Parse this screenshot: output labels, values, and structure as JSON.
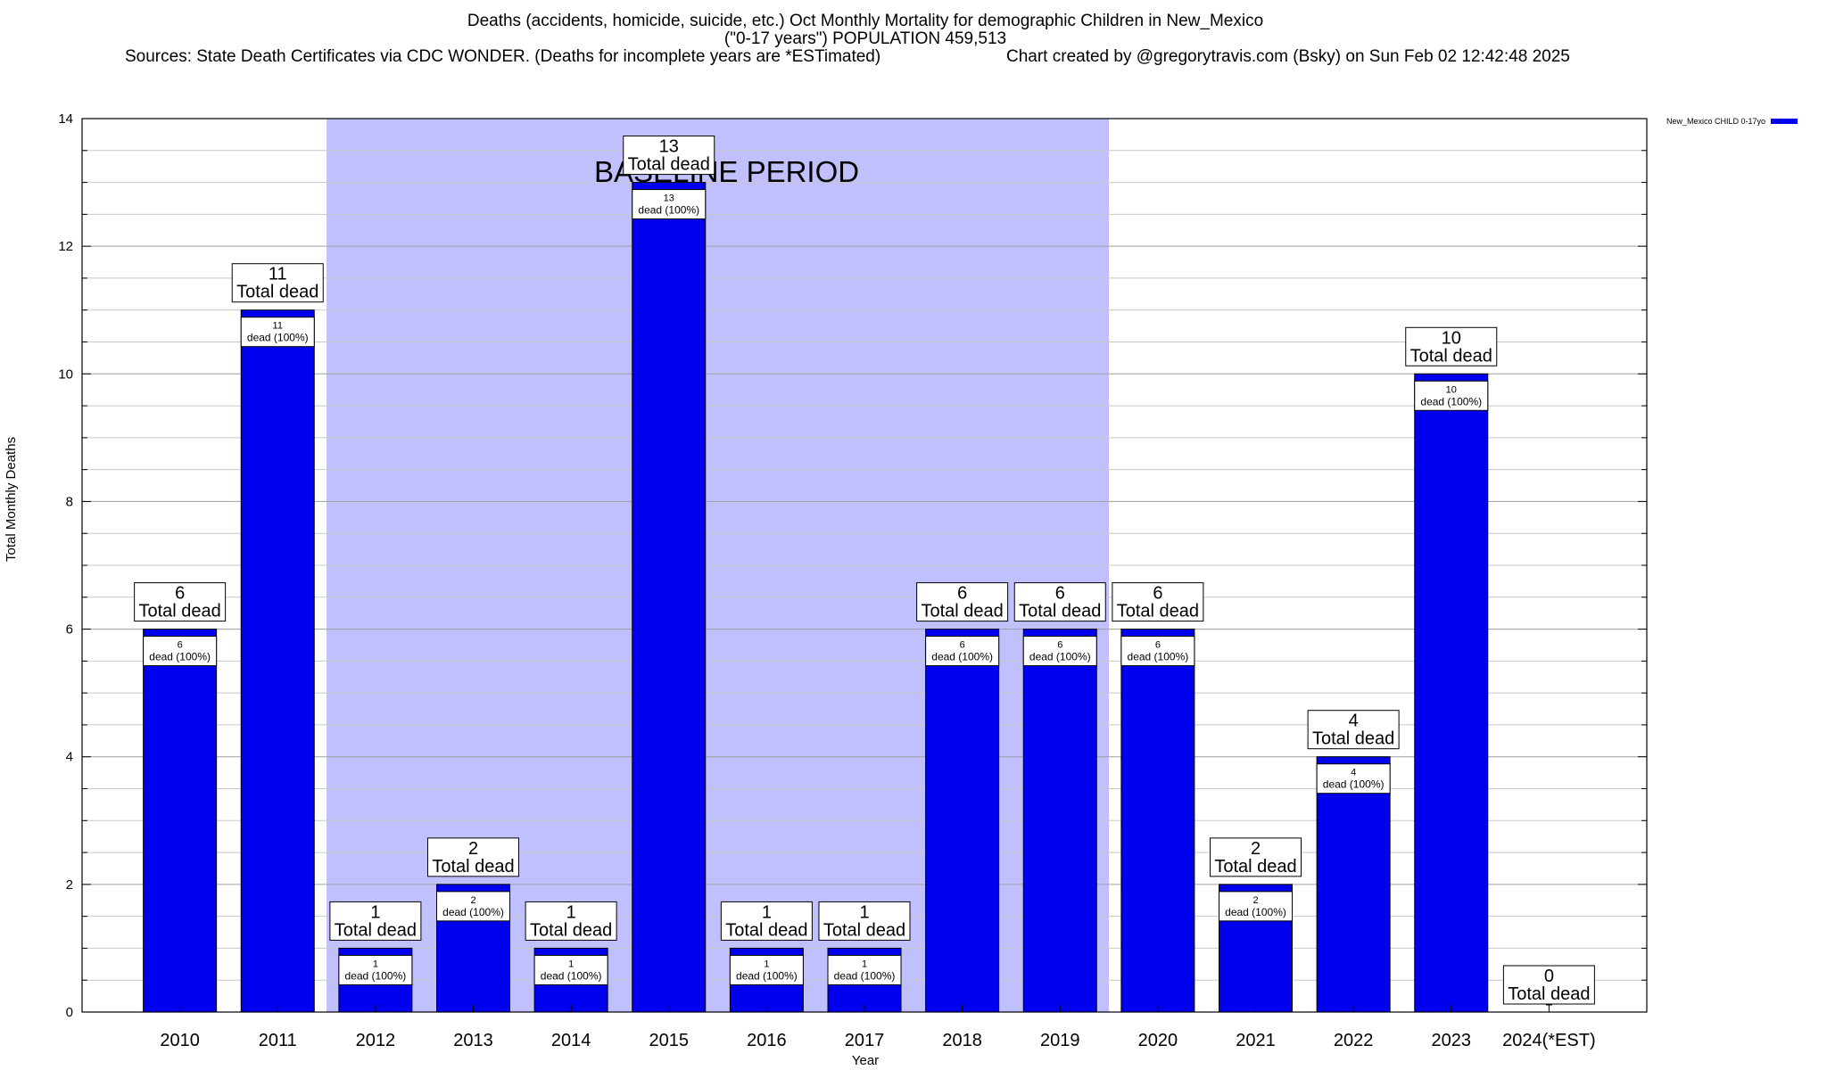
{
  "chart_data": {
    "type": "bar",
    "title_line1": "Deaths (accidents, homicide, suicide, etc.) Oct Monthly Mortality for demographic Children in New_Mexico",
    "title_line2": "(\"0-17 years\") POPULATION 459,513",
    "sources": "Sources: State Death Certificates via CDC WONDER. (Deaths for incomplete years are *ESTimated)",
    "credit": "Chart created by @gregorytravis.com (Bsky) on Sun Feb 02 12:42:48 2025",
    "xlabel": "Year",
    "ylabel": "Total Monthly Deaths",
    "ylim": [
      0,
      14
    ],
    "yticks": [
      0,
      2,
      4,
      6,
      8,
      10,
      12,
      14
    ],
    "categories": [
      "2010",
      "2011",
      "2012",
      "2013",
      "2014",
      "2015",
      "2016",
      "2017",
      "2018",
      "2019",
      "2020",
      "2021",
      "2022",
      "2023",
      "2024(*EST)"
    ],
    "series": [
      {
        "name": "New_Mexico CHILD 0-17yo",
        "color": "#0000ee",
        "values": [
          6,
          11,
          1,
          2,
          1,
          13,
          1,
          1,
          6,
          6,
          6,
          2,
          4,
          10,
          0
        ]
      }
    ],
    "total_label": "Total dead",
    "bar_label_suffix": "dead (100%)",
    "baseline_label": "BASELINE PERIOD",
    "baseline_range": [
      "2012",
      "2019"
    ],
    "baseline_color": "#c0c0ff",
    "grid": true,
    "legend_position": "top-right"
  }
}
